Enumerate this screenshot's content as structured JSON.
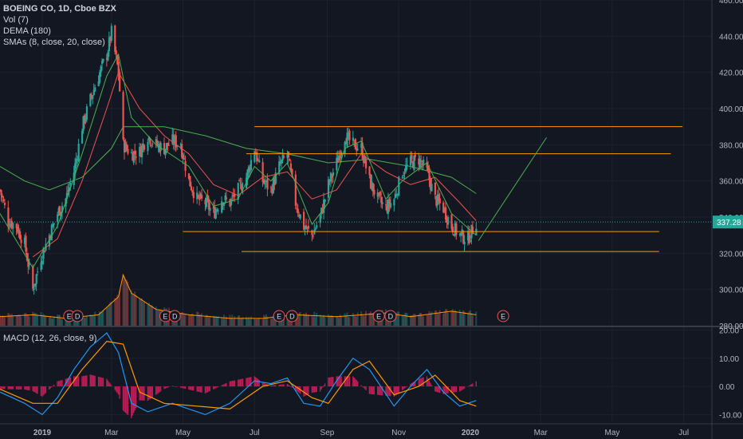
{
  "legend": {
    "title": "BOEING CO, 1D, Cboe BZX",
    "vol": "Vol (7)",
    "dema": "DEMA (180)",
    "smas": "SMAs (8, close, 20, close)",
    "macd": "MACD (12, 26, close, 9)"
  },
  "colors": {
    "background": "#131722",
    "grid": "#1e2230",
    "text": "#d1d4dc",
    "axis_text": "#b2b5be",
    "up": "#26a69a",
    "down": "#ef5350",
    "sma_fast": "#4caf50",
    "sma_slow": "#ef5350",
    "dema": "#4caf50",
    "horizontal_lines": "#ff9800",
    "trend_line": "#4caf50",
    "price_line": "#26a69a",
    "macd_line": "#2196f3",
    "signal_line": "#ff9800",
    "hist_pos": "#e91e63",
    "hist_neg": "#e91e63",
    "event_marker": "#ef5350"
  },
  "chart_data": [
    {
      "type": "candlestick",
      "ylim": [
        280,
        460
      ],
      "yticks": [
        "460.00",
        "440.00",
        "420.00",
        "400.00",
        "380.00",
        "360.00",
        "340.00",
        "320.00",
        "300.00",
        "280.00"
      ],
      "ytick_values": [
        460,
        440,
        420,
        400,
        380,
        360,
        340,
        320,
        300,
        280
      ],
      "xlim": [
        "2018-11-26",
        "2020-07-25"
      ],
      "xticks": [
        "2019",
        "Mar",
        "May",
        "Jul",
        "Sep",
        "Nov",
        "2020",
        "Mar",
        "May",
        "Jul"
      ],
      "xtick_dates": [
        "2019-01-01",
        "2019-03-01",
        "2019-05-01",
        "2019-07-01",
        "2019-09-01",
        "2019-11-01",
        "2020-01-01",
        "2020-03-01",
        "2020-05-01",
        "2020-07-01"
      ],
      "last_price": 337.28,
      "last_price_label": "337.28",
      "close_path": [
        [
          "2018-11-26",
          355
        ],
        [
          "2018-12-03",
          338
        ],
        [
          "2018-12-10",
          335
        ],
        [
          "2018-12-17",
          325
        ],
        [
          "2018-12-24",
          300
        ],
        [
          "2018-12-31",
          318
        ],
        [
          "2019-01-07",
          330
        ],
        [
          "2019-01-14",
          342
        ],
        [
          "2019-01-21",
          350
        ],
        [
          "2019-01-28",
          365
        ],
        [
          "2019-02-04",
          390
        ],
        [
          "2019-02-11",
          405
        ],
        [
          "2019-02-18",
          418
        ],
        [
          "2019-02-25",
          430
        ],
        [
          "2019-03-01",
          442
        ],
        [
          "2019-03-07",
          420
        ],
        [
          "2019-03-11",
          380
        ],
        [
          "2019-03-18",
          375
        ],
        [
          "2019-03-25",
          376
        ],
        [
          "2019-04-01",
          385
        ],
        [
          "2019-04-08",
          380
        ],
        [
          "2019-04-15",
          378
        ],
        [
          "2019-04-22",
          382
        ],
        [
          "2019-04-29",
          380
        ],
        [
          "2019-05-06",
          360
        ],
        [
          "2019-05-13",
          350
        ],
        [
          "2019-05-20",
          348
        ],
        [
          "2019-05-27",
          342
        ],
        [
          "2019-06-03",
          350
        ],
        [
          "2019-06-10",
          348
        ],
        [
          "2019-06-17",
          355
        ],
        [
          "2019-06-24",
          362
        ],
        [
          "2019-07-01",
          378
        ],
        [
          "2019-07-08",
          360
        ],
        [
          "2019-07-15",
          355
        ],
        [
          "2019-07-22",
          368
        ],
        [
          "2019-07-29",
          375
        ],
        [
          "2019-08-05",
          348
        ],
        [
          "2019-08-12",
          335
        ],
        [
          "2019-08-19",
          330
        ],
        [
          "2019-08-26",
          340
        ],
        [
          "2019-09-02",
          358
        ],
        [
          "2019-09-09",
          370
        ],
        [
          "2019-09-16",
          385
        ],
        [
          "2019-09-23",
          380
        ],
        [
          "2019-09-30",
          378
        ],
        [
          "2019-10-07",
          360
        ],
        [
          "2019-10-14",
          350
        ],
        [
          "2019-10-21",
          345
        ],
        [
          "2019-10-28",
          350
        ],
        [
          "2019-11-04",
          365
        ],
        [
          "2019-11-11",
          370
        ],
        [
          "2019-11-18",
          372
        ],
        [
          "2019-11-25",
          365
        ],
        [
          "2019-12-02",
          350
        ],
        [
          "2019-12-09",
          345
        ],
        [
          "2019-12-16",
          335
        ],
        [
          "2019-12-23",
          330
        ],
        [
          "2019-12-30",
          328
        ],
        [
          "2020-01-06",
          337.28
        ]
      ],
      "sma_fast_path": [
        [
          "2018-11-26",
          342
        ],
        [
          "2018-12-24",
          312
        ],
        [
          "2019-01-14",
          335
        ],
        [
          "2019-02-04",
          375
        ],
        [
          "2019-02-25",
          418
        ],
        [
          "2019-03-07",
          430
        ],
        [
          "2019-03-18",
          395
        ],
        [
          "2019-04-08",
          380
        ],
        [
          "2019-05-06",
          368
        ],
        [
          "2019-05-27",
          346
        ],
        [
          "2019-06-17",
          350
        ],
        [
          "2019-07-01",
          368
        ],
        [
          "2019-07-15",
          360
        ],
        [
          "2019-07-29",
          370
        ],
        [
          "2019-08-19",
          336
        ],
        [
          "2019-09-02",
          348
        ],
        [
          "2019-09-16",
          378
        ],
        [
          "2019-09-30",
          382
        ],
        [
          "2019-10-21",
          350
        ],
        [
          "2019-11-04",
          360
        ],
        [
          "2019-11-25",
          370
        ],
        [
          "2019-12-16",
          342
        ],
        [
          "2020-01-06",
          330
        ]
      ],
      "sma_slow_path": [
        [
          "2018-12-24",
          318
        ],
        [
          "2019-01-14",
          328
        ],
        [
          "2019-02-04",
          360
        ],
        [
          "2019-02-25",
          400
        ],
        [
          "2019-03-07",
          420
        ],
        [
          "2019-03-25",
          400
        ],
        [
          "2019-04-15",
          385
        ],
        [
          "2019-05-06",
          375
        ],
        [
          "2019-05-27",
          358
        ],
        [
          "2019-06-17",
          352
        ],
        [
          "2019-07-08",
          362
        ],
        [
          "2019-07-29",
          365
        ],
        [
          "2019-08-19",
          350
        ],
        [
          "2019-09-09",
          355
        ],
        [
          "2019-09-30",
          375
        ],
        [
          "2019-10-21",
          365
        ],
        [
          "2019-11-11",
          358
        ],
        [
          "2019-12-02",
          362
        ],
        [
          "2019-12-23",
          348
        ],
        [
          "2020-01-06",
          338
        ]
      ],
      "dema_path": [
        [
          "2018-11-26",
          368
        ],
        [
          "2018-12-17",
          360
        ],
        [
          "2019-01-07",
          355
        ],
        [
          "2019-02-04",
          362
        ],
        [
          "2019-03-01",
          378
        ],
        [
          "2019-03-11",
          390
        ],
        [
          "2019-04-15",
          390
        ],
        [
          "2019-05-20",
          385
        ],
        [
          "2019-06-24",
          378
        ],
        [
          "2019-07-29",
          375
        ],
        [
          "2019-09-02",
          370
        ],
        [
          "2019-10-07",
          372
        ],
        [
          "2019-11-11",
          368
        ],
        [
          "2019-12-16",
          362
        ],
        [
          "2020-01-06",
          353
        ]
      ],
      "horizontal_lines": [
        {
          "y": 390,
          "x_start": "2019-07-01",
          "x_end": "2020-06-30"
        },
        {
          "y": 375,
          "x_start": "2019-06-24",
          "x_end": "2020-06-20"
        },
        {
          "y": 332,
          "x_start": "2019-05-01",
          "x_end": "2020-06-10"
        },
        {
          "y": 321,
          "x_start": "2019-06-20",
          "x_end": "2020-06-10"
        }
      ],
      "trend_line": {
        "from": [
          "2020-01-08",
          327
        ],
        "to": [
          "2020-03-06",
          384
        ]
      },
      "volume_path": [
        [
          "2018-11-26",
          285
        ],
        [
          "2018-12-24",
          286
        ],
        [
          "2019-01-21",
          284
        ],
        [
          "2019-02-18",
          286
        ],
        [
          "2019-03-07",
          296
        ],
        [
          "2019-03-11",
          308
        ],
        [
          "2019-03-18",
          298
        ],
        [
          "2019-04-08",
          289
        ],
        [
          "2019-05-06",
          286
        ],
        [
          "2019-06-10",
          284
        ],
        [
          "2019-07-08",
          284
        ],
        [
          "2019-08-05",
          286
        ],
        [
          "2019-09-09",
          285
        ],
        [
          "2019-10-21",
          287
        ],
        [
          "2019-11-11",
          285
        ],
        [
          "2019-12-16",
          288
        ],
        [
          "2020-01-06",
          286
        ]
      ],
      "event_markers": [
        {
          "date": "2019-01-24",
          "label": "E"
        },
        {
          "date": "2019-01-31",
          "label": "D"
        },
        {
          "date": "2019-04-16",
          "label": "E"
        },
        {
          "date": "2019-04-24",
          "label": "D"
        },
        {
          "date": "2019-07-22",
          "label": "E"
        },
        {
          "date": "2019-08-02",
          "label": "D"
        },
        {
          "date": "2019-10-15",
          "label": "E"
        },
        {
          "date": "2019-10-25",
          "label": "D"
        },
        {
          "date": "2020-01-29",
          "label": "E"
        }
      ]
    },
    {
      "type": "line",
      "name": "MACD",
      "ylim": [
        -13,
        21
      ],
      "yticks": [
        "20.00",
        "10.00",
        "0.00",
        "-10.00"
      ],
      "ytick_values": [
        20,
        10,
        0,
        -10
      ],
      "macd_path": [
        [
          "2018-11-26",
          -2
        ],
        [
          "2018-12-17",
          -6
        ],
        [
          "2019-01-01",
          -10
        ],
        [
          "2019-01-14",
          -4
        ],
        [
          "2019-01-28",
          6
        ],
        [
          "2019-02-11",
          14
        ],
        [
          "2019-02-25",
          19
        ],
        [
          "2019-03-07",
          12
        ],
        [
          "2019-03-18",
          -6
        ],
        [
          "2019-04-01",
          -9
        ],
        [
          "2019-04-22",
          -6
        ],
        [
          "2019-05-06",
          -8
        ],
        [
          "2019-05-20",
          -10
        ],
        [
          "2019-06-10",
          -6
        ],
        [
          "2019-07-01",
          2
        ],
        [
          "2019-07-15",
          1
        ],
        [
          "2019-07-29",
          3
        ],
        [
          "2019-08-12",
          -6
        ],
        [
          "2019-08-26",
          -7
        ],
        [
          "2019-09-09",
          2
        ],
        [
          "2019-09-23",
          10
        ],
        [
          "2019-10-07",
          6
        ],
        [
          "2019-10-28",
          -7
        ],
        [
          "2019-11-11",
          0
        ],
        [
          "2019-11-25",
          6
        ],
        [
          "2019-12-09",
          -2
        ],
        [
          "2019-12-23",
          -7
        ],
        [
          "2020-01-06",
          -5
        ]
      ],
      "signal_path": [
        [
          "2018-11-26",
          -1
        ],
        [
          "2018-12-24",
          -6
        ],
        [
          "2019-01-14",
          -6
        ],
        [
          "2019-02-04",
          6
        ],
        [
          "2019-02-25",
          16
        ],
        [
          "2019-03-11",
          15
        ],
        [
          "2019-03-25",
          -2
        ],
        [
          "2019-04-15",
          -6
        ],
        [
          "2019-05-13",
          -7
        ],
        [
          "2019-06-10",
          -8
        ],
        [
          "2019-07-08",
          0
        ],
        [
          "2019-07-29",
          2
        ],
        [
          "2019-08-19",
          -4
        ],
        [
          "2019-09-02",
          -6
        ],
        [
          "2019-09-23",
          6
        ],
        [
          "2019-10-07",
          9
        ],
        [
          "2019-10-28",
          -3
        ],
        [
          "2019-11-18",
          0
        ],
        [
          "2019-12-02",
          4
        ],
        [
          "2019-12-23",
          -5
        ],
        [
          "2020-01-06",
          -7
        ]
      ]
    }
  ]
}
